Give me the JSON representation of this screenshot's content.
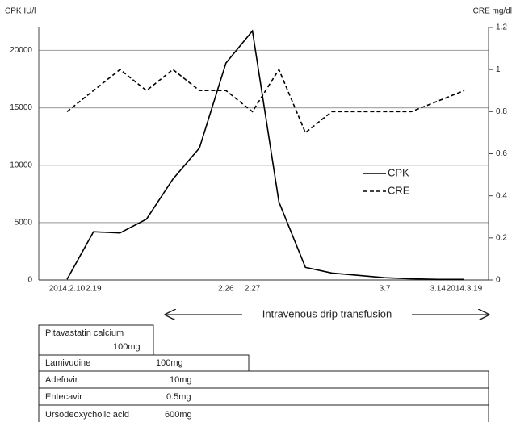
{
  "chart_data": {
    "type": "line",
    "y_label": "CPK  IU/l",
    "y2_label": "CRE mg/dl",
    "categories": [
      "2014.2.10",
      "2.19",
      null,
      null,
      null,
      null,
      "2.26",
      "2.27",
      null,
      null,
      null,
      null,
      "3.7",
      null,
      "3.14",
      "2014.3.19"
    ],
    "series": [
      {
        "name": "CPK",
        "color": "#000000",
        "dash": false,
        "values": [
          50,
          4200,
          4100,
          5300,
          8800,
          11500,
          18900,
          21700,
          6800,
          1100,
          600,
          400,
          200,
          100,
          50,
          50
        ]
      },
      {
        "name": "CRE",
        "color": "#000000",
        "dash": true,
        "axis": "y2",
        "values": [
          0.8,
          0.9,
          1.0,
          0.9,
          1.0,
          0.9,
          0.9,
          0.8,
          1.0,
          0.7,
          0.8,
          0.8,
          0.8,
          0.8,
          0.85,
          0.9
        ]
      }
    ],
    "ylim": [
      0,
      22000
    ],
    "yticks": [
      0,
      5000,
      10000,
      15000,
      20000
    ],
    "y2lim": [
      0,
      1.2
    ],
    "y2ticks": [
      0,
      0.2,
      0.4,
      0.6,
      0.8,
      1,
      1.2
    ],
    "grid": true,
    "legend": "right"
  },
  "transfusion_label": "Intravenous drip transfusion",
  "medications": [
    {
      "name": "Pitavastatin calcium",
      "dose": "100mg"
    },
    {
      "name": "Lamivudine",
      "dose": "100mg"
    },
    {
      "name": "Adefovir",
      "dose": "10mg"
    },
    {
      "name": "Entecavir",
      "dose": "0.5mg"
    },
    {
      "name": "Ursodeoxycholic acid",
      "dose": "600mg"
    }
  ]
}
